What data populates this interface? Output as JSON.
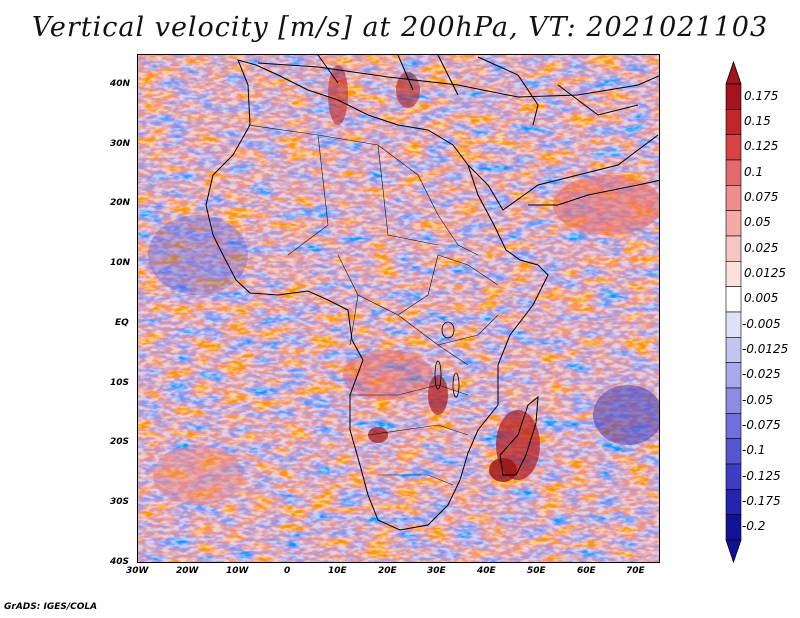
{
  "title": "Vertical velocity [m/s] at 200hPa, VT: 2021021103",
  "map": {
    "region": "Africa and surrounding oceans",
    "lat_labels": [
      "40N",
      "30N",
      "20N",
      "10N",
      "EQ",
      "10S",
      "20S",
      "30S",
      "40S"
    ],
    "lon_labels": [
      "30W",
      "20W",
      "10W",
      "0",
      "10E",
      "20E",
      "30E",
      "40E",
      "50E",
      "60E",
      "70E"
    ]
  },
  "colorbar": {
    "labels": [
      "0.175",
      "0.15",
      "0.125",
      "0.1",
      "0.075",
      "0.05",
      "0.025",
      "0.0125",
      "0.005",
      "-0.005",
      "-0.0125",
      "-0.025",
      "-0.05",
      "-0.075",
      "-0.1",
      "-0.125",
      "-0.175",
      "-0.2"
    ],
    "colors": [
      "#a3141c",
      "#c0262c",
      "#d84346",
      "#e5696a",
      "#ef8e8c",
      "#f4aaa6",
      "#f8c6c2",
      "#fbe0dd",
      "#ffffff",
      "#e0e0f8",
      "#c4c4f0",
      "#a8a8ea",
      "#8c8ce4",
      "#7070dc",
      "#5656d2",
      "#3c3cc4",
      "#2424b0",
      "#121298"
    ]
  },
  "footer": "GrADS: IGES/COLA"
}
